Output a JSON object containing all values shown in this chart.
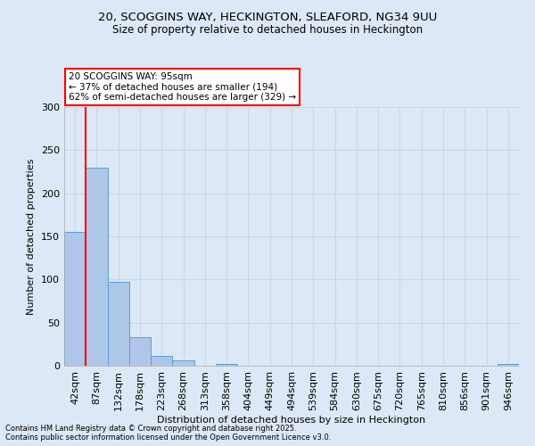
{
  "title1": "20, SCOGGINS WAY, HECKINGTON, SLEAFORD, NG34 9UU",
  "title2": "Size of property relative to detached houses in Heckington",
  "xlabel": "Distribution of detached houses by size in Heckington",
  "ylabel": "Number of detached properties",
  "categories": [
    "42sqm",
    "87sqm",
    "132sqm",
    "178sqm",
    "223sqm",
    "268sqm",
    "313sqm",
    "358sqm",
    "404sqm",
    "449sqm",
    "494sqm",
    "539sqm",
    "584sqm",
    "630sqm",
    "675sqm",
    "720sqm",
    "765sqm",
    "810sqm",
    "856sqm",
    "901sqm",
    "946sqm"
  ],
  "values": [
    155,
    230,
    97,
    33,
    11,
    6,
    0,
    2,
    0,
    0,
    0,
    0,
    0,
    0,
    0,
    0,
    0,
    0,
    0,
    0,
    2
  ],
  "bar_color": "#aec6e8",
  "bar_edge_color": "#5a9fd4",
  "background_color": "#dce8f5",
  "grid_color": "#c8d8ea",
  "vline_x": 0.5,
  "vline_color": "red",
  "annotation_text": "20 SCOGGINS WAY: 95sqm\n← 37% of detached houses are smaller (194)\n62% of semi-detached houses are larger (329) →",
  "annotation_box_color": "white",
  "annotation_box_edge_color": "red",
  "ylim": [
    0,
    300
  ],
  "yticks": [
    0,
    50,
    100,
    150,
    200,
    250,
    300
  ],
  "footnote1": "Contains HM Land Registry data © Crown copyright and database right 2025.",
  "footnote2": "Contains public sector information licensed under the Open Government Licence v3.0."
}
